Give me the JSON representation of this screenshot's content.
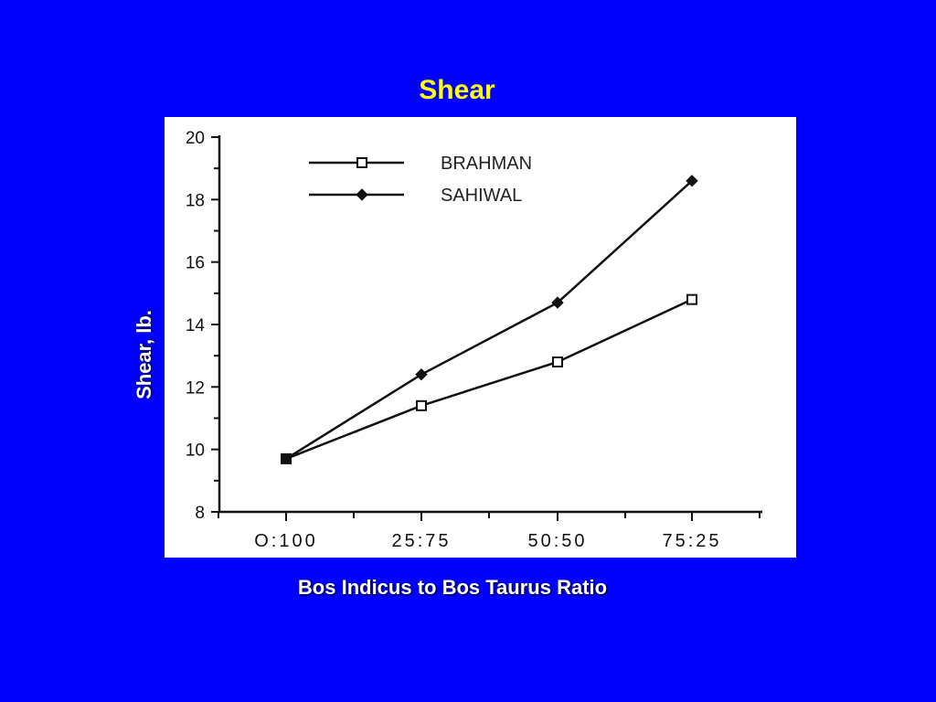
{
  "chart_data": {
    "type": "line",
    "title": "Shear",
    "xlabel": "Bos Indicus to Bos Taurus Ratio",
    "ylabel": "Shear, lb.",
    "categories": [
      "O:100",
      "25:75",
      "50:50",
      "75:25"
    ],
    "yticks": [
      8,
      10,
      12,
      14,
      16,
      18,
      20
    ],
    "ylim": [
      8,
      20
    ],
    "grid": false,
    "legend_position": "top-left",
    "series": [
      {
        "name": "BRAHMAN",
        "marker": "open-square",
        "values": [
          9.7,
          11.4,
          12.8,
          14.8
        ]
      },
      {
        "name": "SAHIWAL",
        "marker": "filled-diamond",
        "values": [
          9.7,
          12.4,
          14.7,
          18.6
        ]
      }
    ]
  },
  "colors": {
    "background": "#0000FF",
    "title": "#FFFF00",
    "labels": "#FFFFFF",
    "plot_background": "#FFFFFF",
    "lines": "#111111"
  }
}
